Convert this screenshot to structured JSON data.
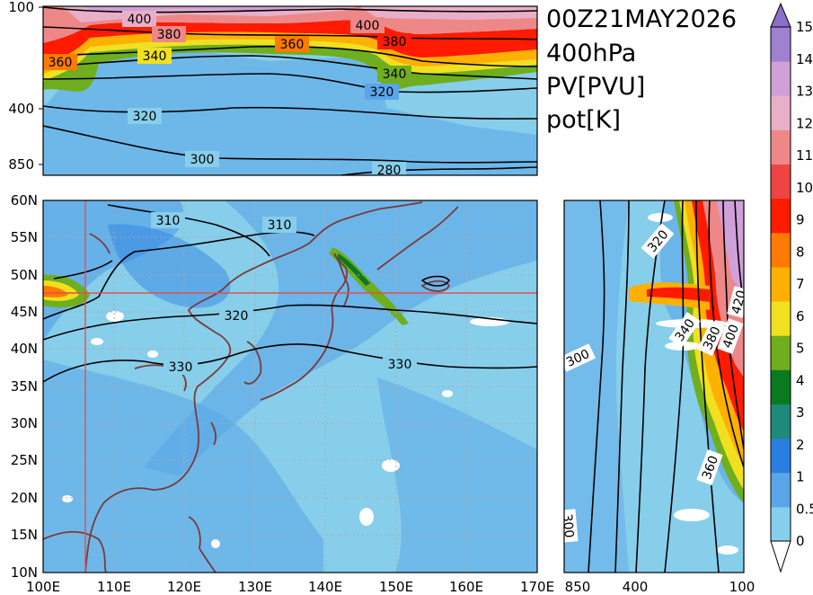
{
  "title_lines": [
    "00Z21MAY2026",
    "400hPa",
    "PV[PVU]",
    "pot[K]"
  ],
  "colors": {
    "pv": [
      "#ffffff",
      "#87ceeb",
      "#5aa5e8",
      "#2a7ee0",
      "#1d8a7a",
      "#0a7a20",
      "#6fae1e",
      "#f0e020",
      "#ffb000",
      "#ff7a00",
      "#ff1a00",
      "#ee4444",
      "#ee8888",
      "#e8b0c8",
      "#d0a0d8",
      "#a080d0"
    ],
    "coast": "#7a3a3a",
    "grid": "#aaaaaa",
    "xsec": "#e05050"
  },
  "colorbar": {
    "levels": [
      "0",
      "0.5",
      "1",
      "2",
      "3",
      "4",
      "5",
      "6",
      "7",
      "8",
      "9",
      "10",
      "11",
      "12",
      "13",
      "14",
      "15"
    ]
  },
  "map": {
    "lon_ticks": [
      "100E",
      "110E",
      "120E",
      "130E",
      "140E",
      "150E",
      "160E",
      "170E"
    ],
    "lat_ticks": [
      "10N",
      "15N",
      "20N",
      "25N",
      "30N",
      "35N",
      "40N",
      "45N",
      "50N",
      "55N",
      "60N"
    ],
    "contour_labels": [
      "310",
      "310",
      "320",
      "330",
      "330"
    ],
    "cross_section": {
      "lon": 106,
      "lat": 47.5
    }
  },
  "top_section": {
    "p_ticks": [
      "100",
      "400",
      "850"
    ],
    "contour_labels": [
      "400",
      "380",
      "400",
      "380",
      "360",
      "360",
      "340",
      "340",
      "320",
      "320",
      "300",
      "280"
    ]
  },
  "right_section": {
    "p_ticks": [
      "850",
      "400",
      "100"
    ],
    "contour_labels": [
      "320",
      "300",
      "340",
      "380",
      "400",
      "420",
      "360",
      "300"
    ]
  }
}
